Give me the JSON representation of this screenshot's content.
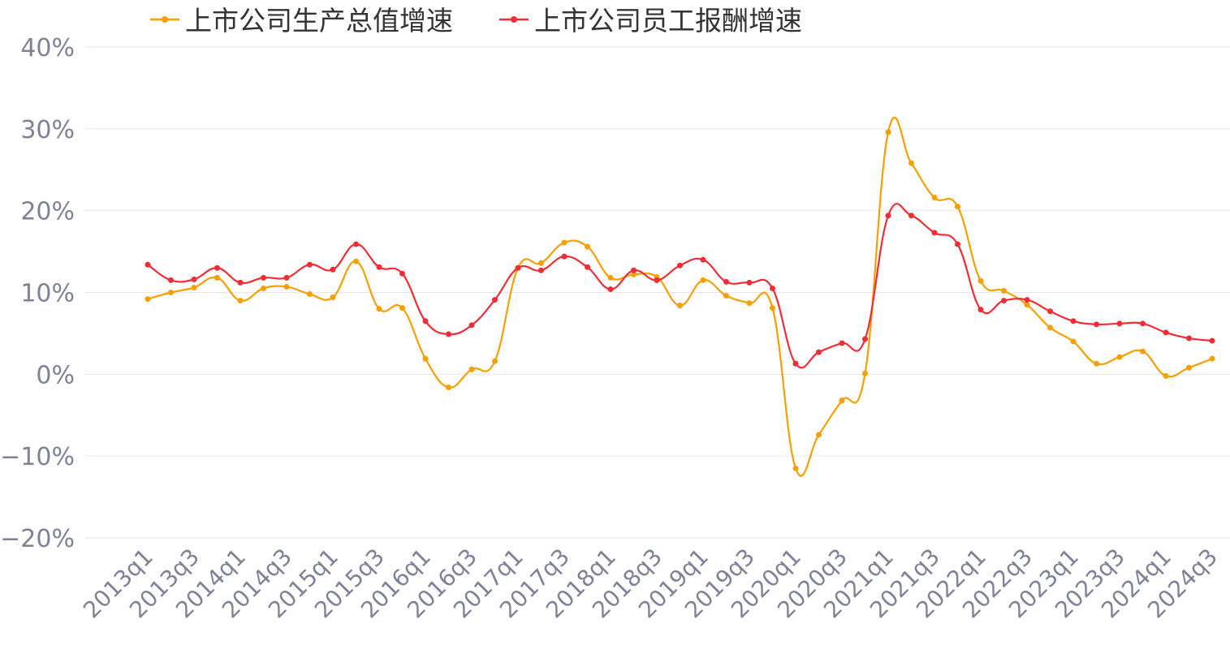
{
  "chart_data": {
    "type": "line",
    "title": "",
    "xlabel": "",
    "ylabel": "",
    "ylim": [
      -20,
      40
    ],
    "yticks": [
      -20,
      -10,
      0,
      10,
      20,
      30,
      40
    ],
    "ytick_format": "%",
    "grid": true,
    "legend_position": "top",
    "x": [
      "2013q1",
      "2013q2",
      "2013q3",
      "2013q4",
      "2014q1",
      "2014q2",
      "2014q3",
      "2014q4",
      "2015q1",
      "2015q2",
      "2015q3",
      "2015q4",
      "2016q1",
      "2016q2",
      "2016q3",
      "2016q4",
      "2017q1",
      "2017q2",
      "2017q3",
      "2017q4",
      "2018q1",
      "2018q2",
      "2018q3",
      "2018q4",
      "2019q1",
      "2019q2",
      "2019q3",
      "2019q4",
      "2020q1",
      "2020q2",
      "2020q3",
      "2020q4",
      "2021q1",
      "2021q2",
      "2021q3",
      "2021q4",
      "2022q1",
      "2022q2",
      "2022q3",
      "2022q4",
      "2023q1",
      "2023q2",
      "2023q3",
      "2023q4",
      "2024q1",
      "2024q2",
      "2024q3"
    ],
    "xtick_labels": [
      "2013q1",
      "2013q3",
      "2014q1",
      "2014q3",
      "2015q1",
      "2015q3",
      "2016q1",
      "2016q3",
      "2017q1",
      "2017q3",
      "2018q1",
      "2018q3",
      "2019q1",
      "2019q3",
      "2020q1",
      "2020q3",
      "2021q1",
      "2021q3",
      "2022q1",
      "2022q3",
      "2023q1",
      "2023q3",
      "2024q1",
      "2024q3"
    ],
    "series": [
      {
        "name": "上市公司生产总值增速",
        "color": "#f5a000",
        "values": [
          9.2,
          10.0,
          10.6,
          11.8,
          9.0,
          10.5,
          10.7,
          9.8,
          9.4,
          13.8,
          8.0,
          8.1,
          1.9,
          -1.6,
          0.6,
          1.6,
          13.0,
          13.6,
          16.1,
          15.6,
          11.8,
          12.2,
          11.9,
          8.4,
          11.5,
          9.6,
          8.7,
          8.1,
          -11.5,
          -7.4,
          -3.2,
          0.1,
          29.6,
          25.8,
          21.6,
          20.5,
          11.4,
          10.2,
          8.5,
          5.7,
          4.0,
          1.3,
          2.1,
          2.8,
          -0.2,
          0.8,
          1.9
        ]
      },
      {
        "name": "上市公司员工报酬增速",
        "color": "#f02d35",
        "values": [
          13.4,
          11.5,
          11.6,
          13.0,
          11.2,
          11.8,
          11.8,
          13.4,
          12.8,
          15.9,
          13.1,
          12.3,
          6.5,
          4.9,
          6.0,
          9.1,
          13.0,
          12.7,
          14.4,
          13.1,
          10.4,
          12.7,
          11.5,
          13.3,
          14.0,
          11.3,
          11.2,
          10.5,
          1.3,
          2.7,
          3.8,
          4.3,
          19.4,
          19.4,
          17.3,
          15.9,
          7.9,
          9.0,
          9.1,
          7.7,
          6.5,
          6.1,
          6.2,
          6.2,
          5.1,
          4.4,
          4.1
        ]
      }
    ]
  }
}
